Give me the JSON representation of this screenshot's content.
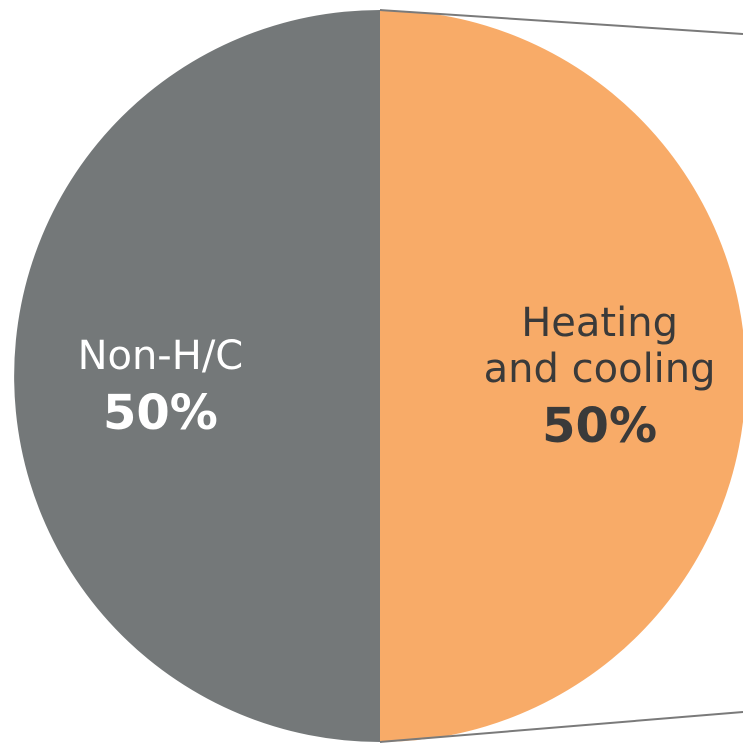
{
  "chart_data": {
    "type": "pie",
    "slices": [
      {
        "label_lines": [
          "Non-H/C"
        ],
        "value": 50,
        "value_label": "50%",
        "color": "#747879",
        "text_color": "#ffffff"
      },
      {
        "label_lines": [
          "Heating",
          "and cooling"
        ],
        "value": 50,
        "value_label": "50%",
        "color": "#f8ab68",
        "text_color": "#3a3a3a"
      }
    ],
    "connector_color": "#7a7a7a"
  }
}
